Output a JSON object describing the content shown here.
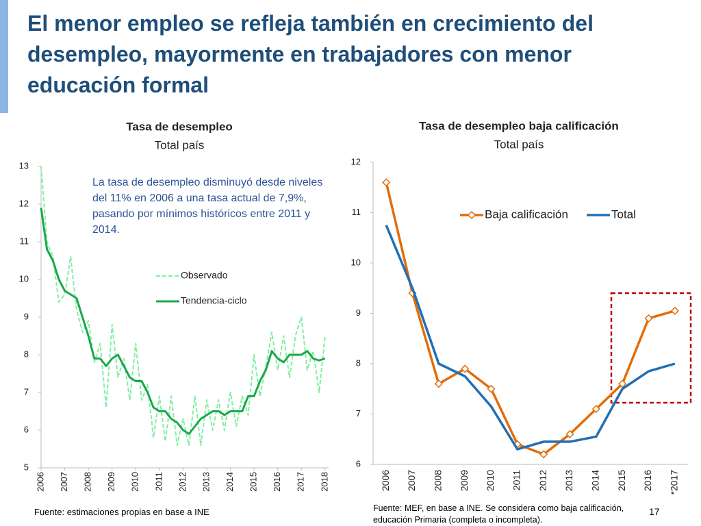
{
  "title": "El menor empleo se refleja también en crecimiento del desempleo, mayormente en trabajadores con menor educación formal",
  "chart_data": [
    {
      "type": "line",
      "title": "Tasa de desempleo",
      "subtitle": "Total país",
      "annotation": "La tasa de desempleo disminuyó desde niveles del 11% en 2006 a una tasa actual de 7,9%, pasando por mínimos históricos entre 2011 y 2014.",
      "x": [
        2006,
        2006.25,
        2006.5,
        2006.75,
        2007,
        2007.25,
        2007.5,
        2007.75,
        2008,
        2008.25,
        2008.5,
        2008.75,
        2009,
        2009.25,
        2009.5,
        2009.75,
        2010,
        2010.25,
        2010.5,
        2010.75,
        2011,
        2011.25,
        2011.5,
        2011.75,
        2012,
        2012.25,
        2012.5,
        2012.75,
        2013,
        2013.25,
        2013.5,
        2013.75,
        2014,
        2014.25,
        2014.5,
        2014.75,
        2015,
        2015.25,
        2015.5,
        2015.75,
        2016,
        2016.25,
        2016.5,
        2016.75,
        2017,
        2017.25,
        2017.5,
        2017.75,
        2018
      ],
      "series": [
        {
          "name": "Observado",
          "color": "#7ef0a0",
          "line_style": "dashed",
          "values": [
            13,
            11,
            10.6,
            9.4,
            9.6,
            10.6,
            9.2,
            8.6,
            8.9,
            7.8,
            8.3,
            6.6,
            8.8,
            7.4,
            7.9,
            6.8,
            8.3,
            6.8,
            7.2,
            5.8,
            6.9,
            5.7,
            6.9,
            5.6,
            6.3,
            5.6,
            6.9,
            5.6,
            6.8,
            6.0,
            6.8,
            6.0,
            7.0,
            6.1,
            6.9,
            6.4,
            8.0,
            6.9,
            7.7,
            8.6,
            7.6,
            8.5,
            7.4,
            8.5,
            9.0,
            7.6,
            8.1,
            7.0,
            8.5
          ]
        },
        {
          "name": "Tendencia-ciclo",
          "color": "#1aa84a",
          "line_style": "solid",
          "values": [
            11.9,
            10.8,
            10.5,
            10.0,
            9.7,
            9.6,
            9.5,
            9.0,
            8.5,
            7.9,
            7.9,
            7.7,
            7.9,
            8.0,
            7.7,
            7.4,
            7.3,
            7.3,
            7.0,
            6.6,
            6.5,
            6.5,
            6.3,
            6.2,
            6.0,
            5.9,
            6.1,
            6.3,
            6.4,
            6.5,
            6.5,
            6.4,
            6.5,
            6.5,
            6.5,
            6.9,
            6.9,
            7.3,
            7.6,
            8.1,
            7.9,
            7.8,
            8.0,
            8.0,
            8.0,
            8.1,
            7.9,
            7.85,
            7.9
          ]
        }
      ],
      "xlim": [
        2006,
        2018.15
      ],
      "xticks": [
        2006,
        2007,
        2008,
        2009,
        2010,
        2011,
        2012,
        2013,
        2014,
        2015,
        2016,
        2017,
        2018
      ],
      "ylim": [
        5,
        13
      ],
      "yticks": [
        5,
        6,
        7,
        8,
        9,
        10,
        11,
        12,
        13
      ]
    },
    {
      "type": "line",
      "title": "Tasa de desempleo baja calificación",
      "subtitle": "Total país",
      "categories": [
        "2006",
        "2007",
        "2008",
        "2009",
        "2010",
        "2011",
        "2012",
        "2013",
        "2014",
        "2015",
        "2016",
        "*2017"
      ],
      "series": [
        {
          "name": "Baja calificación",
          "color": "#e36c0a",
          "marker": "diamond",
          "values": [
            11.6,
            9.4,
            7.6,
            7.9,
            7.5,
            6.4,
            6.2,
            6.6,
            7.1,
            7.6,
            8.9,
            9.05
          ]
        },
        {
          "name": "Total",
          "color": "#1f6fb5",
          "values": [
            10.75,
            9.5,
            8.0,
            7.75,
            7.15,
            6.3,
            6.45,
            6.45,
            6.55,
            7.5,
            7.85,
            8.0
          ]
        }
      ],
      "ylim": [
        6,
        12
      ],
      "yticks": [
        6,
        7,
        8,
        9,
        10,
        11,
        12
      ]
    }
  ],
  "source_left": "Fuente: estimaciones propias en base a  INE",
  "source_right": "Fuente: MEF, en base a INE. Se considera como baja calificación, educación Primaria (completa o incompleta).",
  "page_number": "17"
}
